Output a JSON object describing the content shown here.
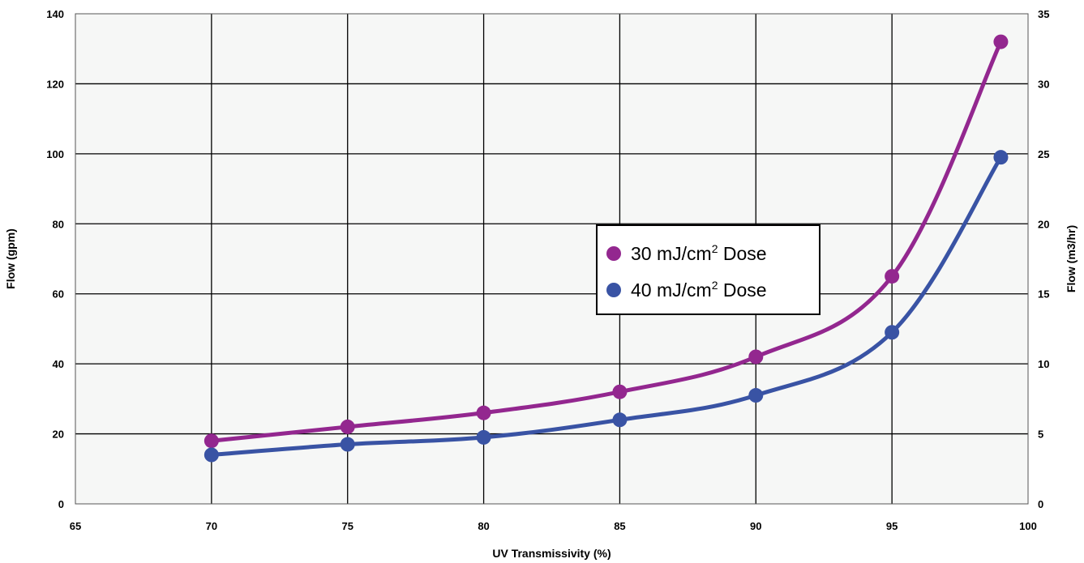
{
  "chart_data": {
    "type": "line",
    "xlabel": "UV Transmissivity (%)",
    "ylabel": "Flow (gpm)",
    "y2label": "Flow (m3/hr)",
    "xlim": [
      65,
      100
    ],
    "ylim": [
      0,
      140
    ],
    "y2lim": [
      0,
      35
    ],
    "xticks": [
      "65",
      "70",
      "75",
      "80",
      "85",
      "90",
      "95",
      "100"
    ],
    "yticks": [
      "0",
      "20",
      "40",
      "60",
      "80",
      "100",
      "120",
      "140"
    ],
    "y2ticks": [
      "0",
      "5",
      "10",
      "15",
      "20",
      "25",
      "30",
      "35"
    ],
    "grid": true,
    "legend_position": "center",
    "series": [
      {
        "name_prefix": "30 mJ/cm",
        "name_sup": "2",
        "name_suffix": " Dose",
        "color": "#93278f",
        "x": [
          70,
          75,
          80,
          85,
          90,
          95,
          99
        ],
        "y": [
          18,
          22,
          26,
          32,
          42,
          65,
          132
        ]
      },
      {
        "name_prefix": "40 mJ/cm",
        "name_sup": "2",
        "name_suffix": " Dose",
        "color": "#3953a4",
        "x": [
          70,
          75,
          80,
          85,
          90,
          95,
          99
        ],
        "y": [
          14,
          17,
          19,
          24,
          31,
          49,
          99
        ]
      }
    ]
  }
}
